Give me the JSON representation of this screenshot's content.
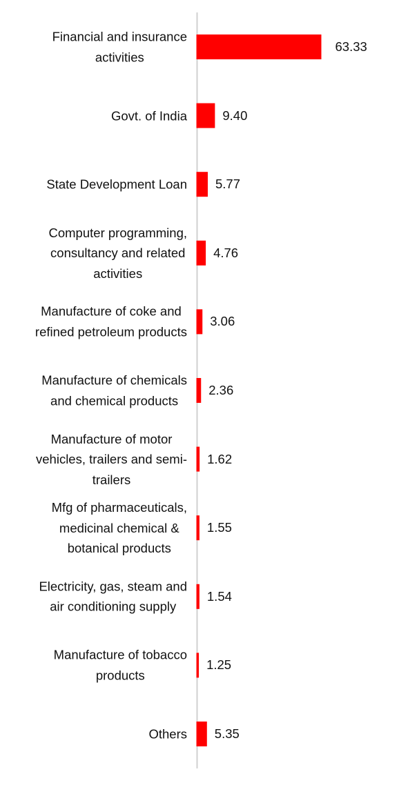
{
  "chart_data": {
    "type": "bar",
    "orientation": "horizontal",
    "categories": [
      "Financial and insurance\nactivities",
      "Govt. of India",
      "State Development Loan",
      "Computer programming,\nconsultancy and related\nactivities",
      "Manufacture of coke and\nrefined petroleum products",
      "Manufacture of chemicals\nand chemical products",
      "Manufacture of motor\nvehicles, trailers and semi-\ntrailers",
      "Mfg of pharmaceuticals,\nmedicinal chemical &\nbotanical products",
      "Electricity, gas, steam and\nair conditioning supply",
      "Manufacture of tobacco\nproducts",
      "Others"
    ],
    "values": [
      63.33,
      9.4,
      5.77,
      4.76,
      3.06,
      2.36,
      1.62,
      1.55,
      1.54,
      1.25,
      5.35
    ],
    "value_labels": [
      "63.33",
      "9.40",
      "5.77",
      "4.76",
      "3.06",
      "2.36",
      "1.62",
      "1.55",
      "1.54",
      "1.25",
      "5.35"
    ],
    "bar_color": "#ff0000",
    "axis_color": "#d0d0d0",
    "grid": false,
    "legend": false
  }
}
